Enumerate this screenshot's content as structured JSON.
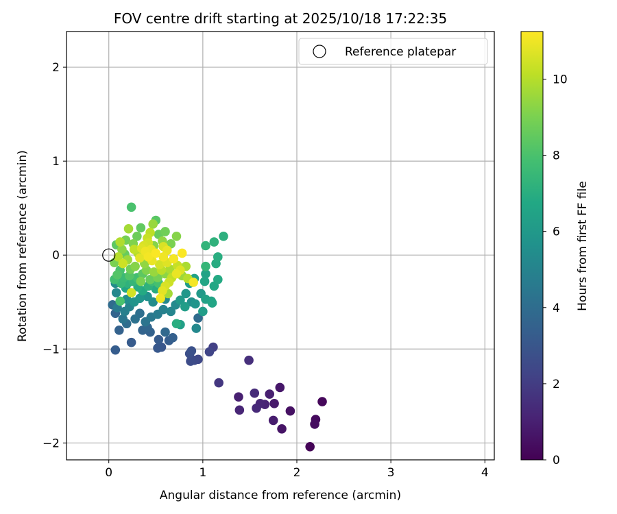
{
  "chart_data": {
    "type": "scatter",
    "title": "FOV centre drift starting at 2025/10/18 17:22:35",
    "xlabel": "Angular distance from reference (arcmin)",
    "ylabel": "Rotation from reference (arcmin)",
    "xlim": [
      -0.45,
      4.1
    ],
    "ylim": [
      -2.18,
      2.38
    ],
    "x_ticks": [
      0,
      1,
      2,
      3,
      4
    ],
    "y_ticks": [
      -2,
      -1,
      0,
      1,
      2
    ],
    "x_tick_labels": [
      "0",
      "1",
      "2",
      "3",
      "4"
    ],
    "y_tick_labels": [
      "−2",
      "−1",
      "0",
      "1",
      "2"
    ],
    "grid": true,
    "legend": {
      "position": "top-right",
      "entries": [
        {
          "label": "Reference platepar",
          "marker": "open-circle",
          "color": "#000000",
          "x": 0,
          "y": 0
        }
      ]
    },
    "colorbar": {
      "label": "Hours from first FF file",
      "colormap": "viridis",
      "range": [
        0,
        11.25
      ],
      "ticks": [
        0,
        2,
        4,
        6,
        8,
        10
      ],
      "tick_labels": [
        "0",
        "2",
        "4",
        "6",
        "8",
        "10"
      ]
    },
    "series": [
      {
        "marker": "filled-circle",
        "color_by": "hours",
        "points": [
          {
            "x": 2.27,
            "y": -1.56,
            "h": 0.2
          },
          {
            "x": 2.2,
            "y": -1.75,
            "h": 0.3
          },
          {
            "x": 2.19,
            "y": -1.8,
            "h": 0.4
          },
          {
            "x": 2.14,
            "y": -2.04,
            "h": 0.1
          },
          {
            "x": 1.93,
            "y": -1.66,
            "h": 0.5
          },
          {
            "x": 1.84,
            "y": -1.85,
            "h": 0.6
          },
          {
            "x": 1.82,
            "y": -1.41,
            "h": 0.7
          },
          {
            "x": 1.76,
            "y": -1.58,
            "h": 0.8
          },
          {
            "x": 1.75,
            "y": -1.76,
            "h": 0.9
          },
          {
            "x": 1.71,
            "y": -1.48,
            "h": 1.0
          },
          {
            "x": 1.66,
            "y": -1.59,
            "h": 1.1
          },
          {
            "x": 1.61,
            "y": -1.58,
            "h": 1.2
          },
          {
            "x": 1.57,
            "y": -1.63,
            "h": 1.3
          },
          {
            "x": 1.55,
            "y": -1.47,
            "h": 1.4
          },
          {
            "x": 1.49,
            "y": -1.12,
            "h": 1.5
          },
          {
            "x": 1.39,
            "y": -1.65,
            "h": 1.2
          },
          {
            "x": 1.38,
            "y": -1.51,
            "h": 1.0
          },
          {
            "x": 1.17,
            "y": -1.36,
            "h": 1.8
          },
          {
            "x": 1.11,
            "y": -0.98,
            "h": 2.1
          },
          {
            "x": 1.07,
            "y": -1.03,
            "h": 2.3
          },
          {
            "x": 0.95,
            "y": -1.11,
            "h": 2.4
          },
          {
            "x": 0.91,
            "y": -1.12,
            "h": 2.5
          },
          {
            "x": 0.87,
            "y": -1.13,
            "h": 2.6
          },
          {
            "x": 0.86,
            "y": -1.05,
            "h": 2.7
          },
          {
            "x": 0.88,
            "y": -1.02,
            "h": 2.8
          },
          {
            "x": 0.56,
            "y": -0.98,
            "h": 3.0
          },
          {
            "x": 0.52,
            "y": -0.99,
            "h": 3.1
          },
          {
            "x": 0.53,
            "y": -0.9,
            "h": 3.2
          },
          {
            "x": 0.64,
            "y": -0.91,
            "h": 3.3
          },
          {
            "x": 0.68,
            "y": -0.88,
            "h": 3.4
          },
          {
            "x": 0.24,
            "y": -0.93,
            "h": 3.2
          },
          {
            "x": 0.07,
            "y": -1.01,
            "h": 3.3
          },
          {
            "x": 0.44,
            "y": -0.82,
            "h": 3.5
          },
          {
            "x": 0.36,
            "y": -0.8,
            "h": 3.6
          },
          {
            "x": 0.41,
            "y": -0.77,
            "h": 3.7
          },
          {
            "x": 0.6,
            "y": -0.82,
            "h": 3.8
          },
          {
            "x": 0.95,
            "y": -0.67,
            "h": 3.9
          },
          {
            "x": 0.93,
            "y": -0.78,
            "h": 5.2
          },
          {
            "x": 0.76,
            "y": -0.74,
            "h": 6.3
          },
          {
            "x": 0.72,
            "y": -0.73,
            "h": 7.0
          },
          {
            "x": 0.07,
            "y": -0.62,
            "h": 3.6
          },
          {
            "x": 0.04,
            "y": -0.53,
            "h": 3.9
          },
          {
            "x": 0.11,
            "y": -0.8,
            "h": 3.5
          },
          {
            "x": 0.19,
            "y": -0.73,
            "h": 4.0
          },
          {
            "x": 0.28,
            "y": -0.68,
            "h": 4.2
          },
          {
            "x": 0.15,
            "y": -0.68,
            "h": 4.4
          },
          {
            "x": 0.09,
            "y": -0.56,
            "h": 4.6
          },
          {
            "x": 0.17,
            "y": -0.6,
            "h": 4.8
          },
          {
            "x": 0.22,
            "y": -0.55,
            "h": 5.0
          },
          {
            "x": 0.33,
            "y": -0.62,
            "h": 4.1
          },
          {
            "x": 0.39,
            "y": -0.71,
            "h": 4.3
          },
          {
            "x": 0.45,
            "y": -0.66,
            "h": 4.5
          },
          {
            "x": 0.52,
            "y": -0.63,
            "h": 4.7
          },
          {
            "x": 0.58,
            "y": -0.58,
            "h": 4.9
          },
          {
            "x": 0.66,
            "y": -0.6,
            "h": 5.1
          },
          {
            "x": 0.71,
            "y": -0.53,
            "h": 5.3
          },
          {
            "x": 0.81,
            "y": -0.55,
            "h": 6.2
          },
          {
            "x": 0.88,
            "y": -0.5,
            "h": 5.6
          },
          {
            "x": 0.92,
            "y": -0.52,
            "h": 5.8
          },
          {
            "x": 0.98,
            "y": -0.41,
            "h": 6.0
          },
          {
            "x": 1.0,
            "y": -0.6,
            "h": 6.2
          },
          {
            "x": 1.03,
            "y": -0.47,
            "h": 6.4
          },
          {
            "x": 1.09,
            "y": -0.49,
            "h": 6.5
          },
          {
            "x": 1.1,
            "y": -0.51,
            "h": 6.6
          },
          {
            "x": 1.12,
            "y": -0.33,
            "h": 6.7
          },
          {
            "x": 1.16,
            "y": -0.26,
            "h": 6.8
          },
          {
            "x": 1.14,
            "y": -0.09,
            "h": 6.9
          },
          {
            "x": 1.16,
            "y": -0.02,
            "h": 7.0
          },
          {
            "x": 1.22,
            "y": 0.2,
            "h": 7.1
          },
          {
            "x": 1.12,
            "y": 0.14,
            "h": 7.2
          },
          {
            "x": 1.03,
            "y": 0.1,
            "h": 7.3
          },
          {
            "x": 1.03,
            "y": -0.12,
            "h": 7.4
          },
          {
            "x": 1.03,
            "y": -0.2,
            "h": 6.5
          },
          {
            "x": 1.02,
            "y": -0.28,
            "h": 6.6
          },
          {
            "x": 0.91,
            "y": -0.25,
            "h": 6.4
          },
          {
            "x": 0.86,
            "y": -0.3,
            "h": 6.2
          },
          {
            "x": 0.82,
            "y": -0.41,
            "h": 5.9
          },
          {
            "x": 0.76,
            "y": -0.48,
            "h": 6.0
          },
          {
            "x": 0.6,
            "y": -0.47,
            "h": 5.2
          },
          {
            "x": 0.47,
            "y": -0.5,
            "h": 5.4
          },
          {
            "x": 0.41,
            "y": -0.44,
            "h": 5.6
          },
          {
            "x": 0.33,
            "y": -0.46,
            "h": 5.8
          },
          {
            "x": 0.27,
            "y": -0.5,
            "h": 5.7
          },
          {
            "x": 0.19,
            "y": -0.47,
            "h": 5.5
          },
          {
            "x": 0.12,
            "y": -0.49,
            "h": 8.0
          },
          {
            "x": 0.08,
            "y": -0.4,
            "h": 5.2
          },
          {
            "x": 0.07,
            "y": -0.3,
            "h": 5.4
          },
          {
            "x": 0.06,
            "y": -0.26,
            "h": 7.8
          },
          {
            "x": 0.09,
            "y": -0.21,
            "h": 8.2
          },
          {
            "x": 0.13,
            "y": -0.3,
            "h": 7.5
          },
          {
            "x": 0.18,
            "y": -0.35,
            "h": 6.6
          },
          {
            "x": 0.24,
            "y": -0.4,
            "h": 10.5
          },
          {
            "x": 0.26,
            "y": -0.28,
            "h": 7.4
          },
          {
            "x": 0.31,
            "y": -0.34,
            "h": 7.0
          },
          {
            "x": 0.36,
            "y": -0.38,
            "h": 6.8
          },
          {
            "x": 0.42,
            "y": -0.33,
            "h": 7.2
          },
          {
            "x": 0.46,
            "y": -0.28,
            "h": 7.6
          },
          {
            "x": 0.5,
            "y": -0.36,
            "h": 6.9
          },
          {
            "x": 0.55,
            "y": -0.46,
            "h": 11.0
          },
          {
            "x": 0.57,
            "y": -0.38,
            "h": 10.8
          },
          {
            "x": 0.6,
            "y": -0.33,
            "h": 10.6
          },
          {
            "x": 0.64,
            "y": -0.29,
            "h": 10.4
          },
          {
            "x": 0.67,
            "y": -0.24,
            "h": 10.2
          },
          {
            "x": 0.72,
            "y": -0.2,
            "h": 10.9
          },
          {
            "x": 0.76,
            "y": -0.16,
            "h": 10.7
          },
          {
            "x": 0.78,
            "y": -0.22,
            "h": 9.6
          },
          {
            "x": 0.82,
            "y": -0.12,
            "h": 9.8
          },
          {
            "x": 0.84,
            "y": -0.25,
            "h": 10.0
          },
          {
            "x": 0.9,
            "y": -0.29,
            "h": 11.1
          },
          {
            "x": 0.78,
            "y": 0.02,
            "h": 11.2
          },
          {
            "x": 0.72,
            "y": 0.2,
            "h": 9.2
          },
          {
            "x": 0.66,
            "y": 0.12,
            "h": 9.0
          },
          {
            "x": 0.6,
            "y": 0.25,
            "h": 8.8
          },
          {
            "x": 0.57,
            "y": 0.15,
            "h": 9.4
          },
          {
            "x": 0.53,
            "y": 0.22,
            "h": 8.6
          },
          {
            "x": 0.5,
            "y": 0.37,
            "h": 8.3
          },
          {
            "x": 0.47,
            "y": 0.33,
            "h": 9.5
          },
          {
            "x": 0.44,
            "y": 0.24,
            "h": 10.1
          },
          {
            "x": 0.41,
            "y": 0.18,
            "h": 10.3
          },
          {
            "x": 0.37,
            "y": 0.1,
            "h": 10.6
          },
          {
            "x": 0.34,
            "y": 0.29,
            "h": 8.5
          },
          {
            "x": 0.3,
            "y": 0.2,
            "h": 8.7
          },
          {
            "x": 0.26,
            "y": 0.12,
            "h": 9.1
          },
          {
            "x": 0.24,
            "y": 0.51,
            "h": 8.0
          },
          {
            "x": 0.21,
            "y": 0.28,
            "h": 9.7
          },
          {
            "x": 0.18,
            "y": 0.16,
            "h": 8.9
          },
          {
            "x": 0.14,
            "y": 0.06,
            "h": 9.3
          },
          {
            "x": 0.12,
            "y": 0.14,
            "h": 9.9
          },
          {
            "x": 0.08,
            "y": 0.11,
            "h": 8.4
          },
          {
            "x": 0.06,
            "y": -0.08,
            "h": 9.0
          },
          {
            "x": 0.1,
            "y": -0.02,
            "h": 10.0
          },
          {
            "x": 0.15,
            "y": -0.09,
            "h": 10.4
          },
          {
            "x": 0.2,
            "y": -0.05,
            "h": 9.6
          },
          {
            "x": 0.23,
            "y": -0.15,
            "h": 8.8
          },
          {
            "x": 0.28,
            "y": -0.12,
            "h": 9.2
          },
          {
            "x": 0.33,
            "y": -0.03,
            "h": 10.8
          },
          {
            "x": 0.38,
            "y": -0.09,
            "h": 9.4
          },
          {
            "x": 0.42,
            "y": -0.02,
            "h": 11.1
          },
          {
            "x": 0.46,
            "y": -0.06,
            "h": 10.9
          },
          {
            "x": 0.5,
            "y": 0.02,
            "h": 11.2
          },
          {
            "x": 0.54,
            "y": -0.1,
            "h": 10.5
          },
          {
            "x": 0.58,
            "y": -0.02,
            "h": 11.0
          },
          {
            "x": 0.62,
            "y": -0.08,
            "h": 10.7
          },
          {
            "x": 0.65,
            "y": -0.15,
            "h": 9.8
          },
          {
            "x": 0.69,
            "y": -0.04,
            "h": 11.1
          },
          {
            "x": 0.73,
            "y": -0.11,
            "h": 10.3
          },
          {
            "x": 0.45,
            "y": 0.06,
            "h": 10.9
          },
          {
            "x": 0.39,
            "y": 0.04,
            "h": 11.0
          },
          {
            "x": 0.35,
            "y": 0.07,
            "h": 10.7
          },
          {
            "x": 0.31,
            "y": 0.02,
            "h": 9.9
          },
          {
            "x": 0.27,
            "y": 0.06,
            "h": 10.2
          },
          {
            "x": 0.17,
            "y": 0.01,
            "h": 8.6
          },
          {
            "x": 0.22,
            "y": -0.22,
            "h": 8.2
          },
          {
            "x": 0.3,
            "y": -0.24,
            "h": 7.8
          },
          {
            "x": 0.36,
            "y": -0.2,
            "h": 8.4
          },
          {
            "x": 0.4,
            "y": -0.16,
            "h": 9.1
          },
          {
            "x": 0.48,
            "y": -0.18,
            "h": 9.5
          },
          {
            "x": 0.52,
            "y": -0.24,
            "h": 8.9
          },
          {
            "x": 0.56,
            "y": -0.16,
            "h": 10.1
          },
          {
            "x": 0.6,
            "y": -0.2,
            "h": 9.3
          },
          {
            "x": 0.63,
            "y": -0.41,
            "h": 9.7
          },
          {
            "x": 0.12,
            "y": -0.16,
            "h": 8.0
          },
          {
            "x": 0.16,
            "y": -0.24,
            "h": 7.6
          },
          {
            "x": 0.2,
            "y": -0.3,
            "h": 7.2
          },
          {
            "x": 0.34,
            "y": -0.28,
            "h": 9.0
          },
          {
            "x": 0.44,
            "y": -0.26,
            "h": 8.6
          },
          {
            "x": 0.53,
            "y": -0.3,
            "h": 7.9
          },
          {
            "x": 0.58,
            "y": 0.09,
            "h": 10.6
          },
          {
            "x": 0.62,
            "y": 0.05,
            "h": 10.9
          },
          {
            "x": 0.42,
            "y": 0.13,
            "h": 10.5
          },
          {
            "x": 0.48,
            "y": 0.1,
            "h": 9.2
          }
        ]
      }
    ]
  }
}
